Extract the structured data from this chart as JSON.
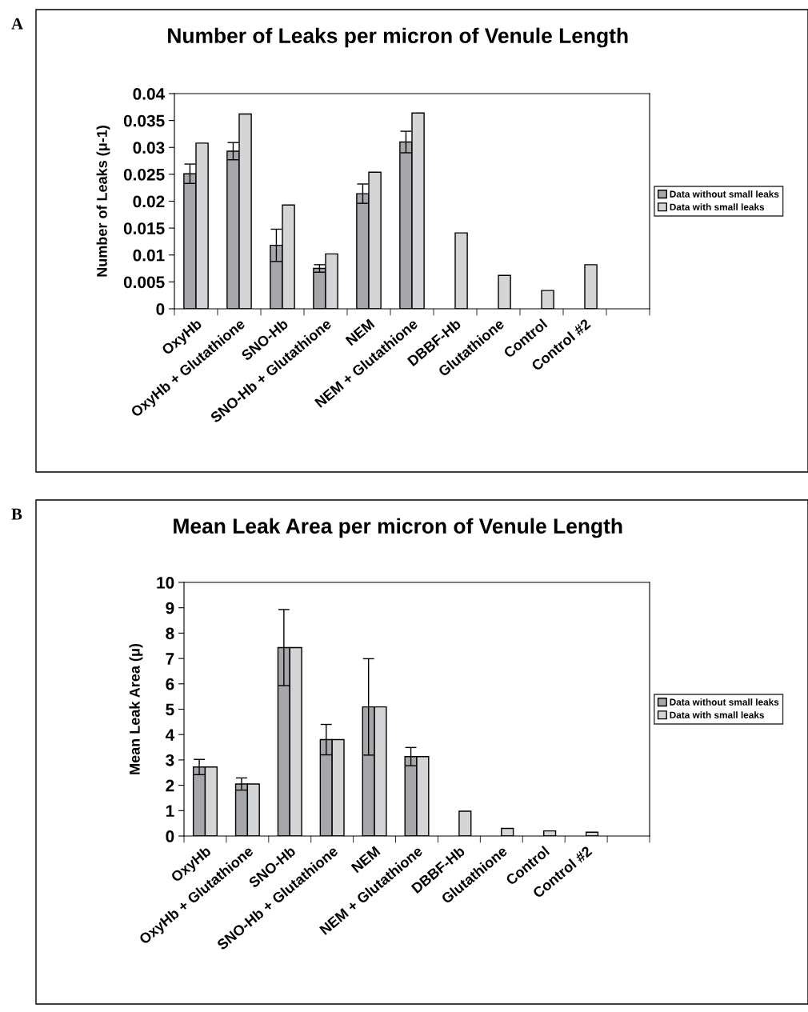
{
  "chart_data": [
    {
      "type": "bar",
      "title": "Number of Leaks per micron of Venule Length",
      "ylabel": "Number of Leaks (μ-1)",
      "annotations": [
        "A"
      ],
      "categories": [
        "OxyHb",
        "OxyHb + Glutathione",
        "SNO-Hb",
        "SNO-Hb + Glutathione",
        "NEM",
        "NEM + Glutathione",
        "DBBF-Hb",
        "Glutathione",
        "Control",
        "Control #2",
        null
      ],
      "series": [
        {
          "name": "Data without small leaks",
          "color": "#a6a7ab",
          "values": [
            0.0251,
            0.0293,
            0.0118,
            0.0075,
            0.0214,
            0.031,
            null,
            null,
            null,
            null,
            null
          ],
          "errors": [
            0.0018,
            0.0016,
            0.003,
            0.0007,
            0.0018,
            0.002,
            null,
            null,
            null,
            null,
            null
          ]
        },
        {
          "name": "Data with small leaks",
          "color": "#d4d5d7",
          "values": [
            0.0308,
            0.0362,
            0.0193,
            0.0102,
            0.0254,
            0.0364,
            0.0141,
            0.0062,
            0.0034,
            0.0082,
            null
          ]
        }
      ],
      "ylim": [
        0,
        0.04
      ],
      "yticks": [
        0,
        0.005,
        0.01,
        0.015,
        0.02,
        0.025,
        0.03,
        0.035,
        0.04
      ],
      "legend": "right",
      "grid": false
    },
    {
      "type": "bar",
      "title": "Mean Leak Area per micron of Venule Length",
      "ylabel": "Mean Leak Area (μ)",
      "annotations": [
        "B"
      ],
      "categories": [
        "OxyHb",
        "OxyHb + Glutathione",
        "SNO-Hb",
        "SNO-Hb + Glutathione",
        "NEM",
        "NEM + Glutathione",
        "DBBF-Hb",
        "Glutathione",
        "Control",
        "Control #2",
        null
      ],
      "series": [
        {
          "name": "Data without small leaks",
          "color": "#a6a7ab",
          "values": [
            2.72,
            2.05,
            7.43,
            3.8,
            5.09,
            3.13,
            null,
            null,
            null,
            null,
            null
          ],
          "errors": [
            0.3,
            0.24,
            1.5,
            0.6,
            1.9,
            0.36,
            null,
            null,
            null,
            null,
            null
          ]
        },
        {
          "name": "Data with small leaks",
          "color": "#d4d5d7",
          "values": [
            2.72,
            2.05,
            7.43,
            3.8,
            5.09,
            3.13,
            0.98,
            0.3,
            0.2,
            0.15,
            null
          ]
        }
      ],
      "ylim": [
        0,
        10
      ],
      "yticks": [
        0,
        1,
        2,
        3,
        4,
        5,
        6,
        7,
        8,
        9,
        10
      ],
      "legend": "right",
      "grid": false
    }
  ]
}
